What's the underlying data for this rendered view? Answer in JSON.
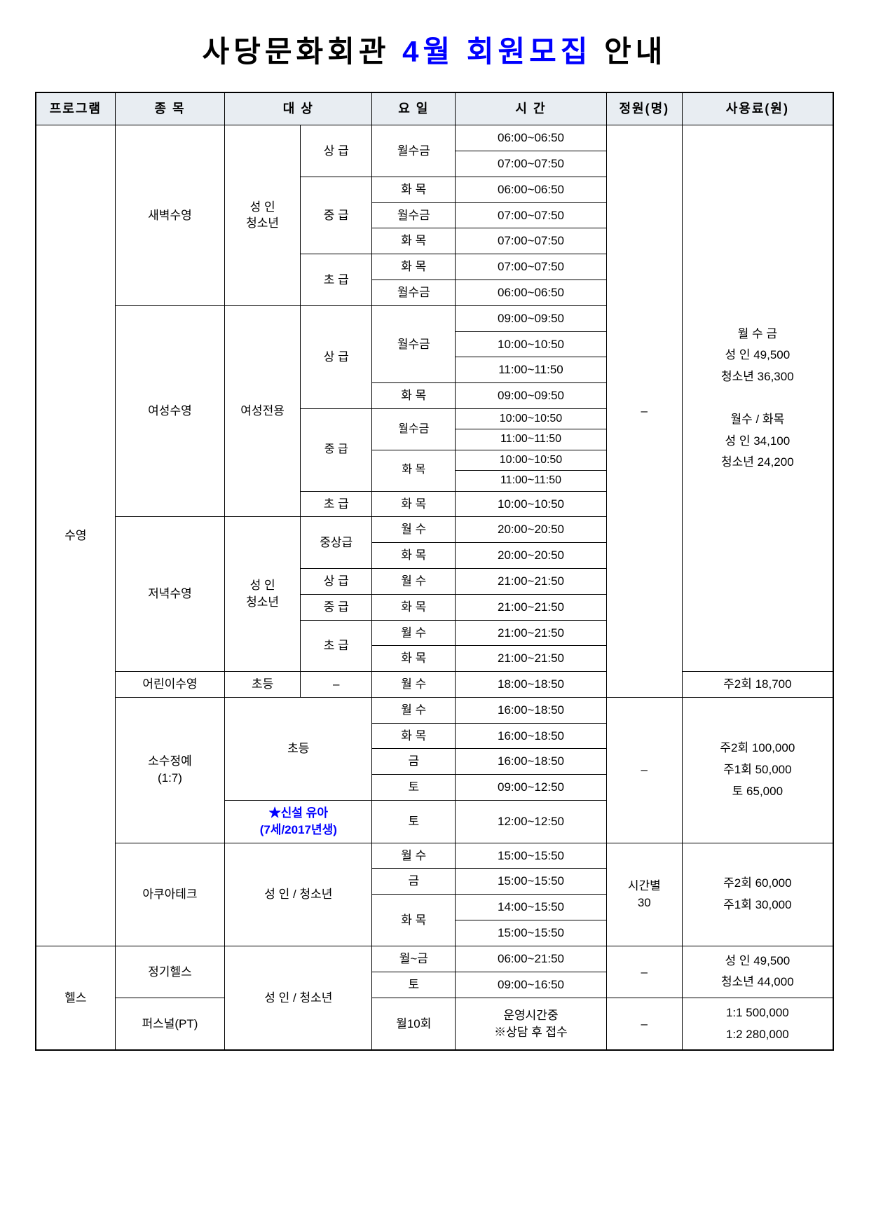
{
  "title": {
    "prefix": "사당문화회관",
    "month": "4월",
    "mid": "회원모집",
    "suffix": "안내"
  },
  "headers": {
    "program": "프로그램",
    "category": "종  목",
    "target": "대    상",
    "day": "요  일",
    "time": "시  간",
    "capacity": "정원(명)",
    "fee": "사용료(원)"
  },
  "programs": {
    "swimming": "수영",
    "health": "헬스"
  },
  "categories": {
    "dawn": "새벽수영",
    "female": "여성수영",
    "evening": "저녁수영",
    "child": "어린이수영",
    "elite": "소수정예\n(1:7)",
    "aqua": "아쿠아테크",
    "regular_health": "정기헬스",
    "personal": "퍼스널(PT)"
  },
  "targets": {
    "adult_youth": "성  인\n청소년",
    "female_only": "여성전용",
    "elem": "초등",
    "adult_youth_line": "성  인 / 청소년",
    "new_infant_l1": "★신설 유아",
    "new_infant_l2": "(7세/2017년생)"
  },
  "levels": {
    "advanced": "상 급",
    "inter": "중 급",
    "basic": "초 급",
    "mid_adv": "중상급",
    "dash": "–"
  },
  "days": {
    "mwf": "월수금",
    "tt": "화 목",
    "mw": "월 수",
    "fri": "금",
    "sat": "토",
    "mon_fri": "월~금",
    "m10": "월10회"
  },
  "times": {
    "t06": "06:00~06:50",
    "t07": "07:00~07:50",
    "t09": "09:00~09:50",
    "t10": "10:00~10:50",
    "t11": "11:00~11:50",
    "t14": "14:00~15:50",
    "t15": "15:00~15:50",
    "t16": "16:00~18:50",
    "t18": "18:00~18:50",
    "t20": "20:00~20:50",
    "t21": "21:00~21:50",
    "t0621": "06:00~21:50",
    "t0916": "09:00~16:50",
    "t0912": "09:00~12:50",
    "t1212": "12:00~12:50",
    "op_hours_l1": "운영시간중",
    "op_hours_l2": "※상담 후 접수"
  },
  "caps": {
    "dash": "–",
    "by_time": "시간별\n30"
  },
  "fees": {
    "swim_main_l1": "월 수 금",
    "swim_main_l2": "성  인 49,500",
    "swim_main_l3": "청소년 36,300",
    "swim_main_l4": "월수 / 화목",
    "swim_main_l5": "성  인 34,100",
    "swim_main_l6": "청소년 24,200",
    "child": "주2회 18,700",
    "elite_l1": "주2회 100,000",
    "elite_l2": "주1회  50,000",
    "elite_l3": "토    65,000",
    "aqua_l1": "주2회  60,000",
    "aqua_l2": "주1회  30,000",
    "health_l1": "성  인 49,500",
    "health_l2": "청소년 44,000",
    "pt_l1": "1:1 500,000",
    "pt_l2": "1:2 280,000"
  }
}
